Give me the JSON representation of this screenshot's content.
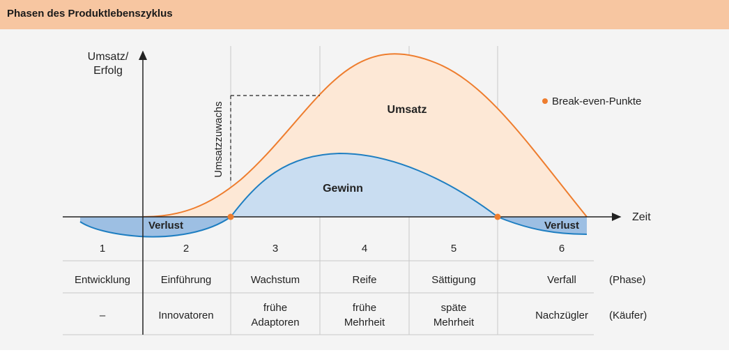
{
  "header": {
    "title": "Phasen des Produktlebenszyklus"
  },
  "axes": {
    "y_label_line1": "Umsatz/",
    "y_label_line2": "Erfolg",
    "x_label": "Zeit"
  },
  "annotations": {
    "umsatzzuwachs": "Umsatzzuwachs",
    "umsatz": "Umsatz",
    "gewinn": "Gewinn",
    "verlust_left": "Verlust",
    "verlust_right": "Verlust"
  },
  "legend": {
    "break_even": "Break-even-Punkte"
  },
  "colors": {
    "umsatz_line": "#ee7d2e",
    "umsatz_fill": "#fde8d6",
    "gewinn_line": "#1e7ec1",
    "gewinn_fill": "#c9ddf1",
    "break_even": "#ee7d2e",
    "header": "#f7c6a1"
  },
  "table": {
    "numbers": [
      "1",
      "2",
      "3",
      "4",
      "5",
      "6"
    ],
    "phases": [
      "Entwicklung",
      "Einführung",
      "Wachstum",
      "Reife",
      "Sättigung",
      "Verfall"
    ],
    "phase_label": "(Phase)",
    "buyers": [
      [
        "–"
      ],
      [
        "Innovatoren"
      ],
      [
        "frühe",
        "Adaptoren"
      ],
      [
        "frühe",
        "Mehrheit"
      ],
      [
        "späte",
        "Mehrheit"
      ],
      [
        "Nachzügler"
      ]
    ],
    "buyer_label": "(Käufer)"
  }
}
